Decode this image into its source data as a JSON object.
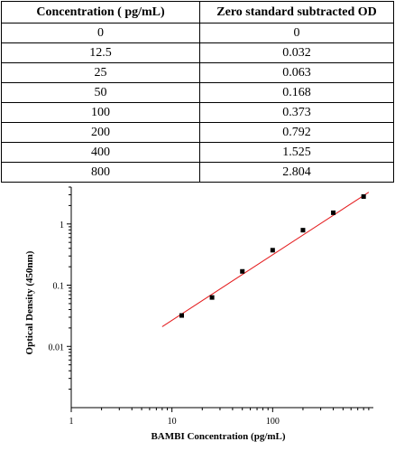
{
  "table": {
    "headers": [
      "Concentration ( pg/mL)",
      "Zero standard subtracted OD"
    ],
    "rows": [
      [
        "0",
        "0"
      ],
      [
        "12.5",
        "0.032"
      ],
      [
        "25",
        "0.063"
      ],
      [
        "50",
        "0.168"
      ],
      [
        "100",
        "0.373"
      ],
      [
        "200",
        "0.792"
      ],
      [
        "400",
        "1.525"
      ],
      [
        "800",
        "2.804"
      ]
    ]
  },
  "chart_data": {
    "type": "scatter",
    "x_scale": "log",
    "y_scale": "log",
    "xlim": [
      1,
      1000
    ],
    "ylim": [
      0.001,
      4
    ],
    "x_ticks": [
      1,
      10,
      100
    ],
    "x_tick_labels": [
      "1",
      "10",
      "100"
    ],
    "y_ticks": [
      0.01,
      0.1,
      1
    ],
    "y_tick_labels": [
      "0.01",
      "0.1",
      "1"
    ],
    "xlabel": "BAMBI Concentration (pg/mL)",
    "ylabel": "Optical Density (450nm)",
    "grid": false,
    "points": [
      {
        "x": 12.5,
        "y": 0.032
      },
      {
        "x": 25,
        "y": 0.063
      },
      {
        "x": 50,
        "y": 0.168
      },
      {
        "x": 100,
        "y": 0.373
      },
      {
        "x": 200,
        "y": 0.792
      },
      {
        "x": 400,
        "y": 1.525
      },
      {
        "x": 800,
        "y": 2.804
      }
    ],
    "fit_line": {
      "x_start": 8,
      "y_start": 0.021,
      "x_end": 900,
      "y_end": 3.3
    },
    "marker_color": "#000000",
    "fit_color": "#e41a1c"
  }
}
